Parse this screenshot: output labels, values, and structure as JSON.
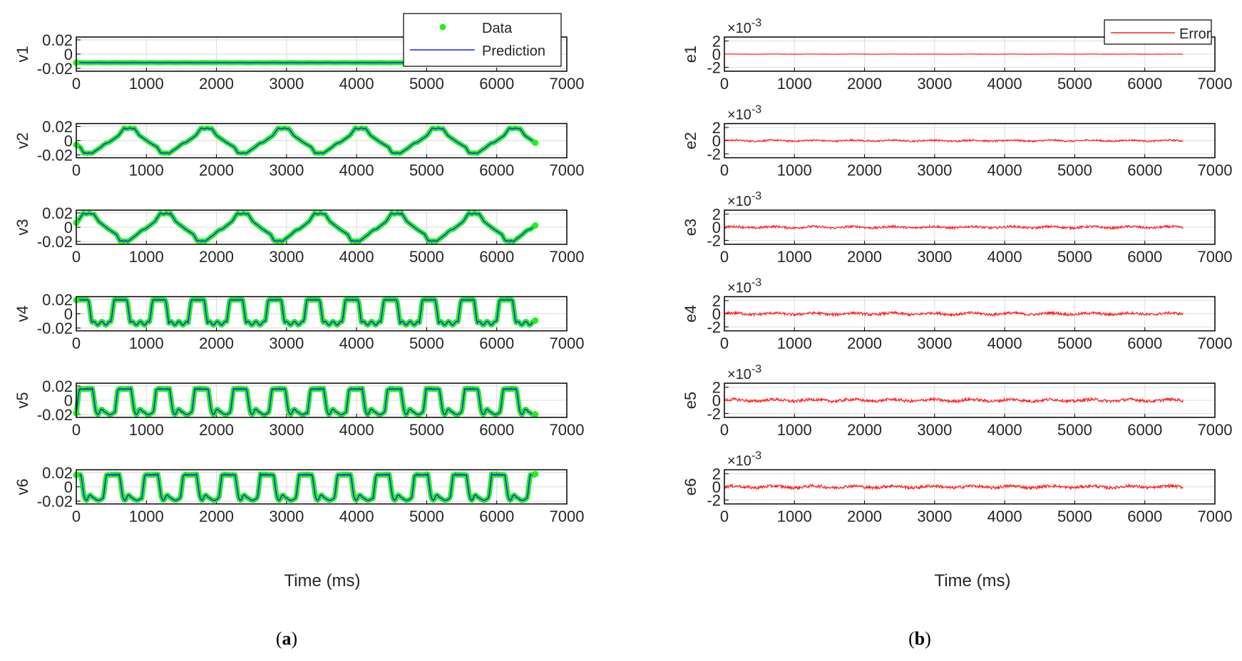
{
  "colors": {
    "data": "#22ee22",
    "prediction": "#1a1aff",
    "error": "#ff2020",
    "axis": "#000000",
    "grid": "#dcdcdc"
  },
  "panel_labels": {
    "a": "a",
    "b": "b"
  },
  "xlabel": "Time (ms)",
  "exponent_label": "×10",
  "exponent_power": "-3",
  "chart_data": [
    {
      "type": "line",
      "panel": "a",
      "title": "",
      "xlabel": "Time (ms)",
      "xlim": [
        0,
        7000
      ],
      "xticks": [
        "0",
        "1000",
        "2000",
        "3000",
        "4000",
        "5000",
        "6000",
        "7000"
      ],
      "ylim": [
        -0.024,
        0.024
      ],
      "yticks": [
        "0.02",
        "0",
        "-0.02"
      ],
      "legend": {
        "position": "top-right",
        "entries": [
          "Data",
          "Prediction"
        ]
      },
      "x_range": [
        0,
        6550
      ],
      "series": [
        {
          "name": "v1",
          "ylabel": "v1",
          "period": 1100,
          "amplitude": 0.0012,
          "offset": -0.012,
          "phase": 0,
          "shape": "flat"
        },
        {
          "name": "v2",
          "ylabel": "v2",
          "period": 1100,
          "amplitude": 0.018,
          "offset": 0,
          "phase": -0.2,
          "shape": "staircase"
        },
        {
          "name": "v3",
          "ylabel": "v3",
          "period": 1100,
          "amplitude": 0.02,
          "offset": 0,
          "phase": 0.33,
          "shape": "staircase"
        },
        {
          "name": "v4",
          "ylabel": "v4",
          "period": 550,
          "amplitude": 0.0175,
          "offset": 0.0025,
          "phase": 0.1,
          "shape": "pulse"
        },
        {
          "name": "v5",
          "ylabel": "v5",
          "period": 550,
          "amplitude": 0.019,
          "offset": -0.001,
          "phase": 0.0,
          "shape": "pulse_dip"
        },
        {
          "name": "v6",
          "ylabel": "v6",
          "period": 550,
          "amplitude": 0.019,
          "offset": 0.0,
          "phase": 0.3,
          "shape": "pulse_dip"
        }
      ]
    },
    {
      "type": "line",
      "panel": "b",
      "title": "",
      "xlabel": "Time (ms)",
      "xlim": [
        0,
        7000
      ],
      "xticks": [
        "0",
        "1000",
        "2000",
        "3000",
        "4000",
        "5000",
        "6000",
        "7000"
      ],
      "ylim": [
        -2.6,
        2.6
      ],
      "yticks": [
        "2",
        "0",
        "-2"
      ],
      "y_scale_note": "×10^-3",
      "legend": {
        "position": "top-right",
        "entries": [
          "Error"
        ]
      },
      "x_range": [
        0,
        6550
      ],
      "series": [
        {
          "name": "e1",
          "ylabel": "e1",
          "noise_amplitude": 0.05
        },
        {
          "name": "e2",
          "ylabel": "e2",
          "noise_amplitude": 0.25
        },
        {
          "name": "e3",
          "ylabel": "e3",
          "noise_amplitude": 0.35
        },
        {
          "name": "e4",
          "ylabel": "e4",
          "noise_amplitude": 0.4
        },
        {
          "name": "e5",
          "ylabel": "e5",
          "noise_amplitude": 0.45
        },
        {
          "name": "e6",
          "ylabel": "e6",
          "noise_amplitude": 0.45
        }
      ]
    }
  ]
}
